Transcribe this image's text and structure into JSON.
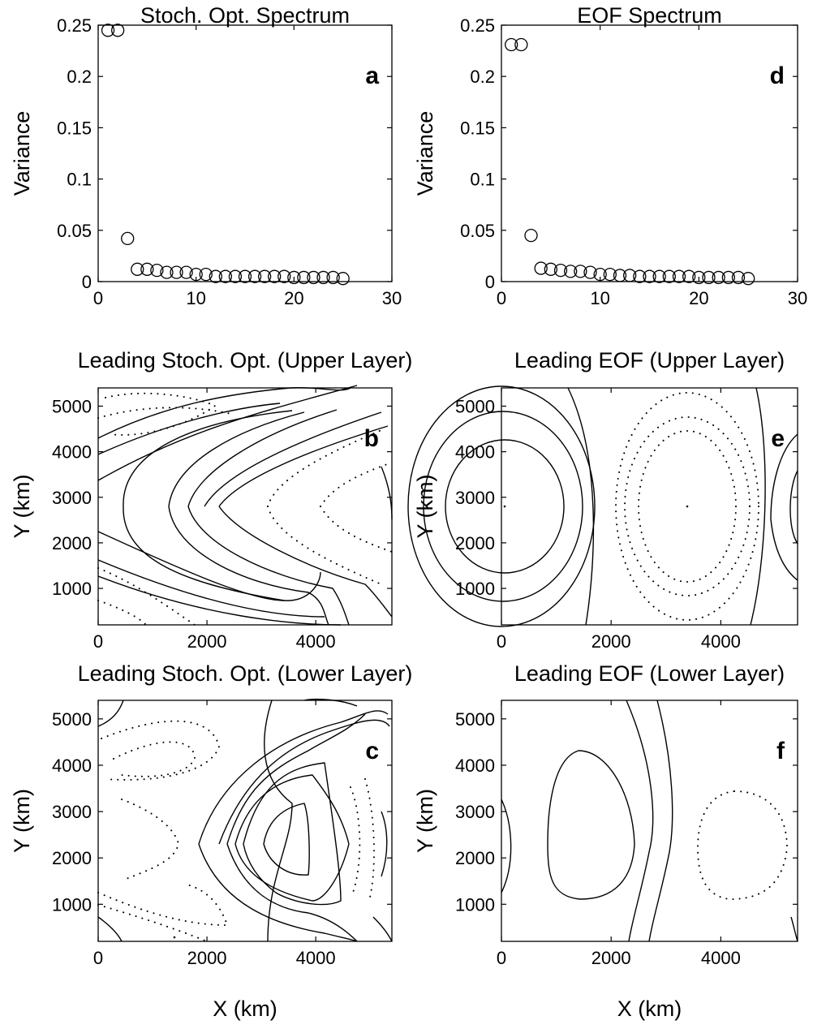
{
  "chart_data": [
    {
      "panel": "a",
      "type": "scatter",
      "title": "Stoch. Opt. Spectrum",
      "xlabel": "",
      "ylabel": "Variance",
      "xlim": [
        0,
        30
      ],
      "ylim": [
        0,
        0.25
      ],
      "xticks": [
        "0",
        "10",
        "20",
        "30"
      ],
      "yticks": [
        "0",
        "0.05",
        "0.1",
        "0.15",
        "0.2",
        "0.25"
      ],
      "marker": "open-circle",
      "x": [
        1,
        2,
        3,
        4,
        5,
        6,
        7,
        8,
        9,
        10,
        11,
        12,
        13,
        14,
        15,
        16,
        17,
        18,
        19,
        20,
        21,
        22,
        23,
        24,
        25
      ],
      "y": [
        0.245,
        0.245,
        0.042,
        0.012,
        0.012,
        0.011,
        0.009,
        0.009,
        0.009,
        0.007,
        0.007,
        0.005,
        0.005,
        0.005,
        0.005,
        0.005,
        0.005,
        0.005,
        0.005,
        0.004,
        0.004,
        0.004,
        0.004,
        0.004,
        0.003
      ]
    },
    {
      "panel": "b",
      "type": "contour",
      "title": "Leading Stoch. Opt. (Upper Layer)",
      "xlabel": "",
      "ylabel": "Y (km)",
      "xlim": [
        0,
        5400
      ],
      "ylim": [
        200,
        5400
      ],
      "xticks": [
        "0",
        "2000",
        "4000"
      ],
      "yticks": [
        "1000",
        "2000",
        "3000",
        "4000",
        "5000"
      ]
    },
    {
      "panel": "c",
      "type": "contour",
      "title": "Leading Stoch. Opt. (Lower Layer)",
      "xlabel": "X (km)",
      "ylabel": "Y (km)",
      "xlim": [
        0,
        5400
      ],
      "ylim": [
        200,
        5400
      ],
      "xticks": [
        "0",
        "2000",
        "4000"
      ],
      "yticks": [
        "1000",
        "2000",
        "3000",
        "4000",
        "5000"
      ]
    },
    {
      "panel": "d",
      "type": "scatter",
      "title": "EOF Spectrum",
      "xlabel": "",
      "ylabel": "Variance",
      "xlim": [
        0,
        30
      ],
      "ylim": [
        0,
        0.25
      ],
      "xticks": [
        "0",
        "10",
        "20",
        "30"
      ],
      "yticks": [
        "0",
        "0.05",
        "0.1",
        "0.15",
        "0.2",
        "0.25"
      ],
      "marker": "open-circle",
      "x": [
        1,
        2,
        3,
        4,
        5,
        6,
        7,
        8,
        9,
        10,
        11,
        12,
        13,
        14,
        15,
        16,
        17,
        18,
        19,
        20,
        21,
        22,
        23,
        24,
        25
      ],
      "y": [
        0.231,
        0.231,
        0.045,
        0.013,
        0.012,
        0.011,
        0.01,
        0.01,
        0.009,
        0.007,
        0.007,
        0.006,
        0.006,
        0.005,
        0.005,
        0.005,
        0.005,
        0.005,
        0.005,
        0.004,
        0.004,
        0.004,
        0.004,
        0.004,
        0.003
      ]
    },
    {
      "panel": "e",
      "type": "contour",
      "title": "Leading EOF (Upper Layer)",
      "xlabel": "",
      "ylabel": "Y (km)",
      "xlim": [
        0,
        5400
      ],
      "ylim": [
        200,
        5400
      ],
      "xticks": [
        "0",
        "2000",
        "4000"
      ],
      "yticks": [
        "1000",
        "2000",
        "3000",
        "4000",
        "5000"
      ]
    },
    {
      "panel": "f",
      "type": "contour",
      "title": "Leading EOF (Lower Layer)",
      "xlabel": "X (km)",
      "ylabel": "Y (km)",
      "xlim": [
        0,
        5400
      ],
      "ylim": [
        200,
        5400
      ],
      "xticks": [
        "0",
        "2000",
        "4000"
      ],
      "yticks": [
        "1000",
        "2000",
        "3000",
        "4000",
        "5000"
      ]
    }
  ]
}
